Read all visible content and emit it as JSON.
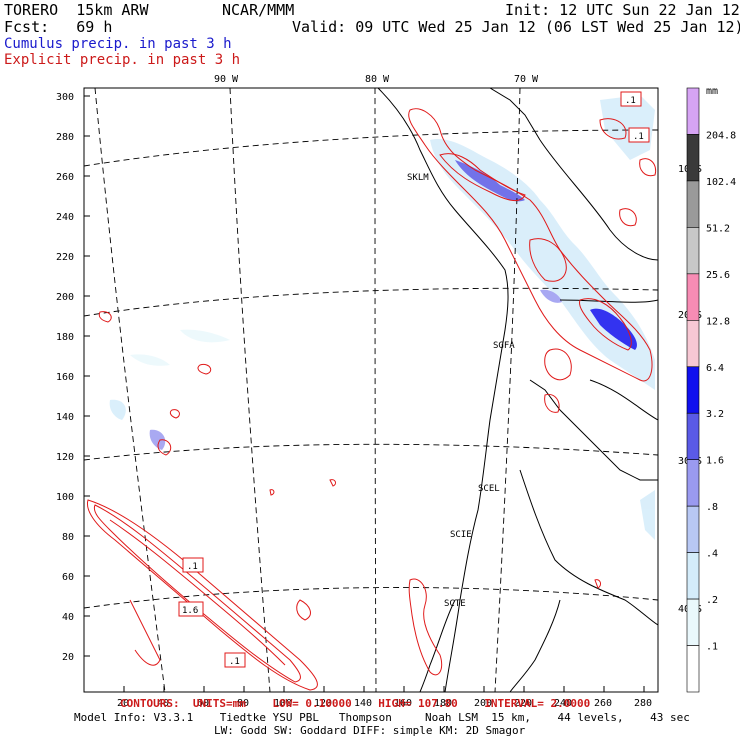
{
  "header": {
    "model": "TORERO  15km ARW",
    "org": "NCAR/MMM",
    "init": "Init: 12 UTC Sun 22 Jan 12",
    "fcst": "Fcst:   69 h",
    "valid": "Valid: 09 UTC Wed 25 Jan 12 (06 LST Wed 25 Jan 12)",
    "field1": "Cumulus precip. in past 3 h",
    "field2": "Explicit precip. in past 3 h"
  },
  "colors": {
    "cumulus": "#1a1acc",
    "explicit": "#cc1a1a",
    "coast": "#000000"
  },
  "longitude_labels": [
    "90 W",
    "80 W",
    "70 W"
  ],
  "latitude_labels": [
    "10 S",
    "20 S",
    "30 S",
    "40 S"
  ],
  "y_ticks": [
    "20",
    "40",
    "60",
    "80",
    "100",
    "120",
    "140",
    "160",
    "180",
    "200",
    "220",
    "240",
    "260",
    "280",
    "300"
  ],
  "x_ticks": [
    "20",
    "40",
    "60",
    "80",
    "100",
    "120",
    "140",
    "160",
    "180",
    "200",
    "220",
    "240",
    "260",
    "280"
  ],
  "stations": [
    "SKLM",
    "SGFA",
    "SCEL",
    "SCIE",
    "SCTE"
  ],
  "box_labels": [
    ".1",
    ".1",
    ".1",
    "1.6",
    ".1"
  ],
  "colorbar": {
    "unit": "mm",
    "levels": [
      "204.8",
      "102.4",
      "51.2",
      "25.6",
      "12.8",
      "6.4",
      "3.2",
      "1.6",
      ".8",
      ".4",
      ".2",
      ".1"
    ],
    "colors": [
      "#d6a4f4",
      "#3a3a3a",
      "#9a9a9a",
      "#c8c8c8",
      "#f78cb4",
      "#f7c8d4",
      "#1010ee",
      "#5a5ae6",
      "#9a9af0",
      "#b8c8f4",
      "#d4ecfa",
      "#eaf8fc",
      "#ffffff"
    ]
  },
  "footer": {
    "contours": "CONTOURS:  UNITS=mm    LOW= 0.10000    HIGH= 107.80    INTERVAL= 2.0000",
    "model_info": "Model Info: V3.3.1    Tiedtke YSU PBL   Thompson     Noah LSM  15 km,    44 levels,    43 sec",
    "physics": "LW: Godd SW: Goddard DIFF: simple KM: 2D Smagor"
  }
}
